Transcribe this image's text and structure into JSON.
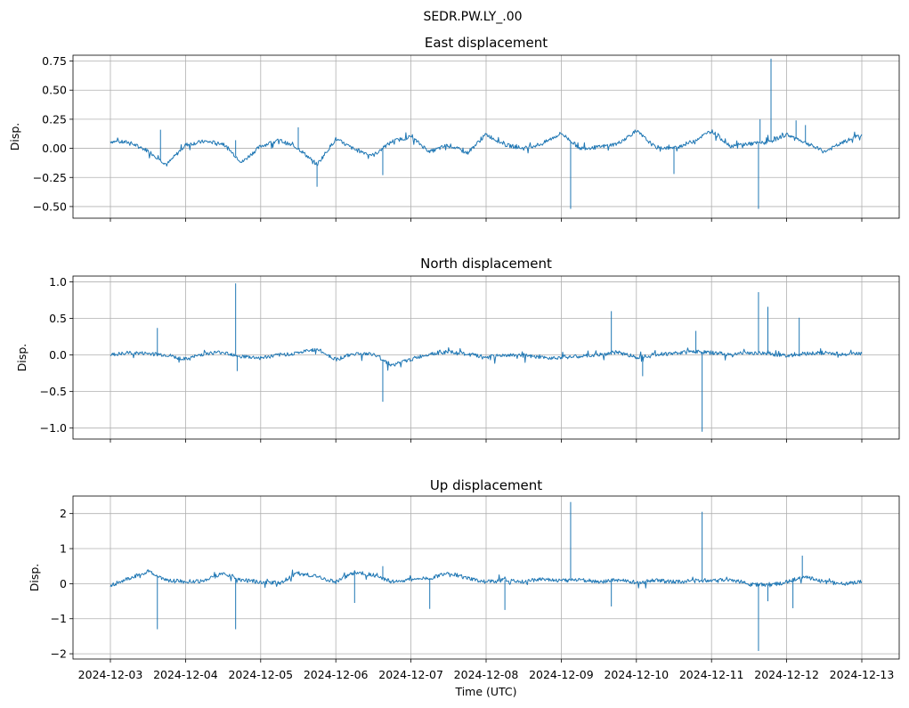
{
  "figure_title": "SEDR.PW.LY_.00",
  "chart_data": [
    {
      "type": "line",
      "title": "East displacement",
      "xlabel": "",
      "ylabel": "Disp.",
      "xlim": [
        "2024-12-03",
        "2024-12-13"
      ],
      "ylim": [
        -0.6,
        0.8
      ],
      "yticks": [
        -0.5,
        -0.25,
        0.0,
        0.25,
        0.5,
        0.75
      ],
      "ytick_labels": [
        "−0.50",
        "−0.25",
        "0.00",
        "0.25",
        "0.50",
        "0.75"
      ],
      "xtick_labels_visible": false,
      "grid": true,
      "series": [
        {
          "color": "#1f77b4",
          "points": [
            [
              "2024-12-03T00:00",
              0.06
            ],
            [
              "2024-12-03T06:00",
              0.05
            ],
            [
              "2024-12-03T12:00",
              -0.02
            ],
            [
              "2024-12-03T18:00",
              -0.14
            ],
            [
              "2024-12-04T00:00",
              0.03
            ],
            [
              "2024-12-04T06:00",
              0.06
            ],
            [
              "2024-12-04T12:00",
              0.04
            ],
            [
              "2024-12-04T18:00",
              -0.12
            ],
            [
              "2024-12-05T00:00",
              0.02
            ],
            [
              "2024-12-05T06:00",
              0.07
            ],
            [
              "2024-12-05T12:00",
              0.0
            ],
            [
              "2024-12-05T18:00",
              -0.14
            ],
            [
              "2024-12-06T00:00",
              0.08
            ],
            [
              "2024-12-06T06:00",
              -0.01
            ],
            [
              "2024-12-06T12:00",
              -0.06
            ],
            [
              "2024-12-06T18:00",
              0.06
            ],
            [
              "2024-12-07T00:00",
              0.1
            ],
            [
              "2024-12-07T06:00",
              -0.03
            ],
            [
              "2024-12-07T12:00",
              0.03
            ],
            [
              "2024-12-07T18:00",
              -0.04
            ],
            [
              "2024-12-08T00:00",
              0.12
            ],
            [
              "2024-12-08T06:00",
              0.03
            ],
            [
              "2024-12-08T12:00",
              0.0
            ],
            [
              "2024-12-08T18:00",
              0.04
            ],
            [
              "2024-12-09T00:00",
              0.13
            ],
            [
              "2024-12-09T06:00",
              0.0
            ],
            [
              "2024-12-09T12:00",
              0.01
            ],
            [
              "2024-12-09T18:00",
              0.04
            ],
            [
              "2024-12-10T00:00",
              0.15
            ],
            [
              "2024-12-10T06:00",
              0.01
            ],
            [
              "2024-12-10T12:00",
              0.0
            ],
            [
              "2024-12-10T18:00",
              0.06
            ],
            [
              "2024-12-11T00:00",
              0.15
            ],
            [
              "2024-12-11T06:00",
              0.02
            ],
            [
              "2024-12-11T12:00",
              0.04
            ],
            [
              "2024-12-11T18:00",
              0.05
            ],
            [
              "2024-12-12T00:00",
              0.12
            ],
            [
              "2024-12-12T06:00",
              0.05
            ],
            [
              "2024-12-12T12:00",
              -0.03
            ],
            [
              "2024-12-12T18:00",
              0.05
            ],
            [
              "2024-12-13T00:00",
              0.12
            ]
          ],
          "spikes": [
            [
              "2024-12-03T16:00",
              0.16
            ],
            [
              "2024-12-04T16:00",
              0.07
            ],
            [
              "2024-12-05T18:00",
              -0.33
            ],
            [
              "2024-12-05T12:00",
              0.18
            ],
            [
              "2024-12-06T15:00",
              -0.23
            ],
            [
              "2024-12-09T03:00",
              -0.52
            ],
            [
              "2024-12-10T12:00",
              -0.22
            ],
            [
              "2024-12-11T15:00",
              -0.52
            ],
            [
              "2024-12-11T19:00",
              0.77
            ],
            [
              "2024-12-11T15:30",
              0.25
            ],
            [
              "2024-12-12T03:00",
              0.24
            ],
            [
              "2024-12-12T06:00",
              0.2
            ]
          ]
        }
      ]
    },
    {
      "type": "line",
      "title": "North displacement",
      "xlabel": "",
      "ylabel": "Disp.",
      "xlim": [
        "2024-12-03",
        "2024-12-13"
      ],
      "ylim": [
        -1.15,
        1.08
      ],
      "yticks": [
        -1.0,
        -0.5,
        0.0,
        0.5,
        1.0
      ],
      "ytick_labels": [
        "−1.0",
        "−0.5",
        "0.0",
        "0.5",
        "1.0"
      ],
      "xtick_labels_visible": false,
      "grid": true,
      "series": [
        {
          "color": "#1f77b4",
          "points": [
            [
              "2024-12-03T00:00",
              0.0
            ],
            [
              "2024-12-03T06:00",
              0.03
            ],
            [
              "2024-12-03T12:00",
              0.02
            ],
            [
              "2024-12-03T18:00",
              0.0
            ],
            [
              "2024-12-04T00:00",
              -0.06
            ],
            [
              "2024-12-04T06:00",
              0.02
            ],
            [
              "2024-12-04T12:00",
              0.04
            ],
            [
              "2024-12-04T18:00",
              -0.02
            ],
            [
              "2024-12-05T00:00",
              -0.04
            ],
            [
              "2024-12-05T06:00",
              0.0
            ],
            [
              "2024-12-05T12:00",
              0.03
            ],
            [
              "2024-12-05T18:00",
              0.08
            ],
            [
              "2024-12-06T00:00",
              -0.06
            ],
            [
              "2024-12-06T06:00",
              0.02
            ],
            [
              "2024-12-06T12:00",
              0.01
            ],
            [
              "2024-12-06T18:00",
              -0.14
            ],
            [
              "2024-12-07T00:00",
              -0.06
            ],
            [
              "2024-12-07T06:00",
              0.02
            ],
            [
              "2024-12-07T12:00",
              0.04
            ],
            [
              "2024-12-07T18:00",
              0.01
            ],
            [
              "2024-12-08T00:00",
              -0.03
            ],
            [
              "2024-12-08T06:00",
              0.0
            ],
            [
              "2024-12-08T12:00",
              -0.01
            ],
            [
              "2024-12-08T18:00",
              -0.04
            ],
            [
              "2024-12-09T00:00",
              -0.03
            ],
            [
              "2024-12-09T06:00",
              -0.02
            ],
            [
              "2024-12-09T12:00",
              0.0
            ],
            [
              "2024-12-09T18:00",
              0.04
            ],
            [
              "2024-12-10T00:00",
              -0.03
            ],
            [
              "2024-12-10T06:00",
              0.01
            ],
            [
              "2024-12-10T12:00",
              0.02
            ],
            [
              "2024-12-10T18:00",
              0.05
            ],
            [
              "2024-12-11T00:00",
              0.03
            ],
            [
              "2024-12-11T06:00",
              0.01
            ],
            [
              "2024-12-11T12:00",
              0.03
            ],
            [
              "2024-12-11T18:00",
              0.02
            ],
            [
              "2024-12-12T00:00",
              -0.01
            ],
            [
              "2024-12-12T06:00",
              0.02
            ],
            [
              "2024-12-12T12:00",
              0.03
            ],
            [
              "2024-12-12T18:00",
              0.01
            ],
            [
              "2024-12-13T00:00",
              0.02
            ]
          ],
          "spikes": [
            [
              "2024-12-03T15:00",
              0.37
            ],
            [
              "2024-12-04T16:00",
              0.98
            ],
            [
              "2024-12-04T16:30",
              -0.22
            ],
            [
              "2024-12-06T15:00",
              -0.64
            ],
            [
              "2024-12-09T16:00",
              0.6
            ],
            [
              "2024-12-10T02:00",
              -0.29
            ],
            [
              "2024-12-10T21:00",
              -1.05
            ],
            [
              "2024-12-11T15:00",
              0.86
            ],
            [
              "2024-12-11T18:00",
              0.66
            ],
            [
              "2024-12-12T04:00",
              0.51
            ],
            [
              "2024-12-10T19:00",
              0.33
            ]
          ]
        }
      ]
    },
    {
      "type": "line",
      "title": "Up displacement",
      "xlabel": "Time (UTC)",
      "ylabel": "Disp.",
      "xlim": [
        "2024-12-03",
        "2024-12-13"
      ],
      "ylim": [
        -2.15,
        2.5
      ],
      "yticks": [
        -2,
        -1,
        0,
        1,
        2
      ],
      "ytick_labels": [
        "−2",
        "−1",
        "0",
        "1",
        "2"
      ],
      "xtick_labels_visible": true,
      "grid": true,
      "series": [
        {
          "color": "#1f77b4",
          "points": [
            [
              "2024-12-03T00:00",
              -0.05
            ],
            [
              "2024-12-03T06:00",
              0.15
            ],
            [
              "2024-12-03T12:00",
              0.35
            ],
            [
              "2024-12-03T18:00",
              0.1
            ],
            [
              "2024-12-04T00:00",
              0.06
            ],
            [
              "2024-12-04T06:00",
              0.08
            ],
            [
              "2024-12-04T12:00",
              0.3
            ],
            [
              "2024-12-04T18:00",
              0.1
            ],
            [
              "2024-12-05T00:00",
              0.05
            ],
            [
              "2024-12-05T06:00",
              0.02
            ],
            [
              "2024-12-05T12:00",
              0.3
            ],
            [
              "2024-12-05T18:00",
              0.2
            ],
            [
              "2024-12-06T00:00",
              0.05
            ],
            [
              "2024-12-06T06:00",
              0.32
            ],
            [
              "2024-12-06T12:00",
              0.25
            ],
            [
              "2024-12-06T18:00",
              0.05
            ],
            [
              "2024-12-07T00:00",
              0.12
            ],
            [
              "2024-12-07T06:00",
              0.15
            ],
            [
              "2024-12-07T12:00",
              0.32
            ],
            [
              "2024-12-07T18:00",
              0.15
            ],
            [
              "2024-12-08T00:00",
              0.05
            ],
            [
              "2024-12-08T06:00",
              0.1
            ],
            [
              "2024-12-08T12:00",
              0.06
            ],
            [
              "2024-12-08T18:00",
              0.14
            ],
            [
              "2024-12-09T00:00",
              0.08
            ],
            [
              "2024-12-09T06:00",
              0.12
            ],
            [
              "2024-12-09T12:00",
              0.05
            ],
            [
              "2024-12-09T18:00",
              0.1
            ],
            [
              "2024-12-10T00:00",
              0.04
            ],
            [
              "2024-12-10T06:00",
              0.1
            ],
            [
              "2024-12-10T12:00",
              0.05
            ],
            [
              "2024-12-10T18:00",
              0.08
            ],
            [
              "2024-12-11T00:00",
              0.1
            ],
            [
              "2024-12-11T06:00",
              0.12
            ],
            [
              "2024-12-11T12:00",
              0.0
            ],
            [
              "2024-12-11T18:00",
              -0.05
            ],
            [
              "2024-12-12T00:00",
              0.05
            ],
            [
              "2024-12-12T06:00",
              0.2
            ],
            [
              "2024-12-12T12:00",
              0.05
            ],
            [
              "2024-12-12T18:00",
              0.0
            ],
            [
              "2024-12-13T00:00",
              0.05
            ]
          ],
          "spikes": [
            [
              "2024-12-03T15:00",
              -1.3
            ],
            [
              "2024-12-04T16:00",
              -1.3
            ],
            [
              "2024-12-06T06:00",
              -0.55
            ],
            [
              "2024-12-06T15:00",
              0.5
            ],
            [
              "2024-12-07T06:00",
              -0.72
            ],
            [
              "2024-12-08T06:00",
              -0.75
            ],
            [
              "2024-12-09T03:00",
              2.33
            ],
            [
              "2024-12-09T16:00",
              -0.65
            ],
            [
              "2024-12-10T21:00",
              2.05
            ],
            [
              "2024-12-11T15:00",
              -1.92
            ],
            [
              "2024-12-11T18:00",
              -0.5
            ],
            [
              "2024-12-12T02:00",
              -0.7
            ],
            [
              "2024-12-12T05:00",
              0.8
            ]
          ]
        }
      ]
    }
  ],
  "x_tick_labels": [
    "2024-12-03",
    "2024-12-04",
    "2024-12-05",
    "2024-12-06",
    "2024-12-07",
    "2024-12-08",
    "2024-12-09",
    "2024-12-10",
    "2024-12-11",
    "2024-12-12",
    "2024-12-13"
  ]
}
